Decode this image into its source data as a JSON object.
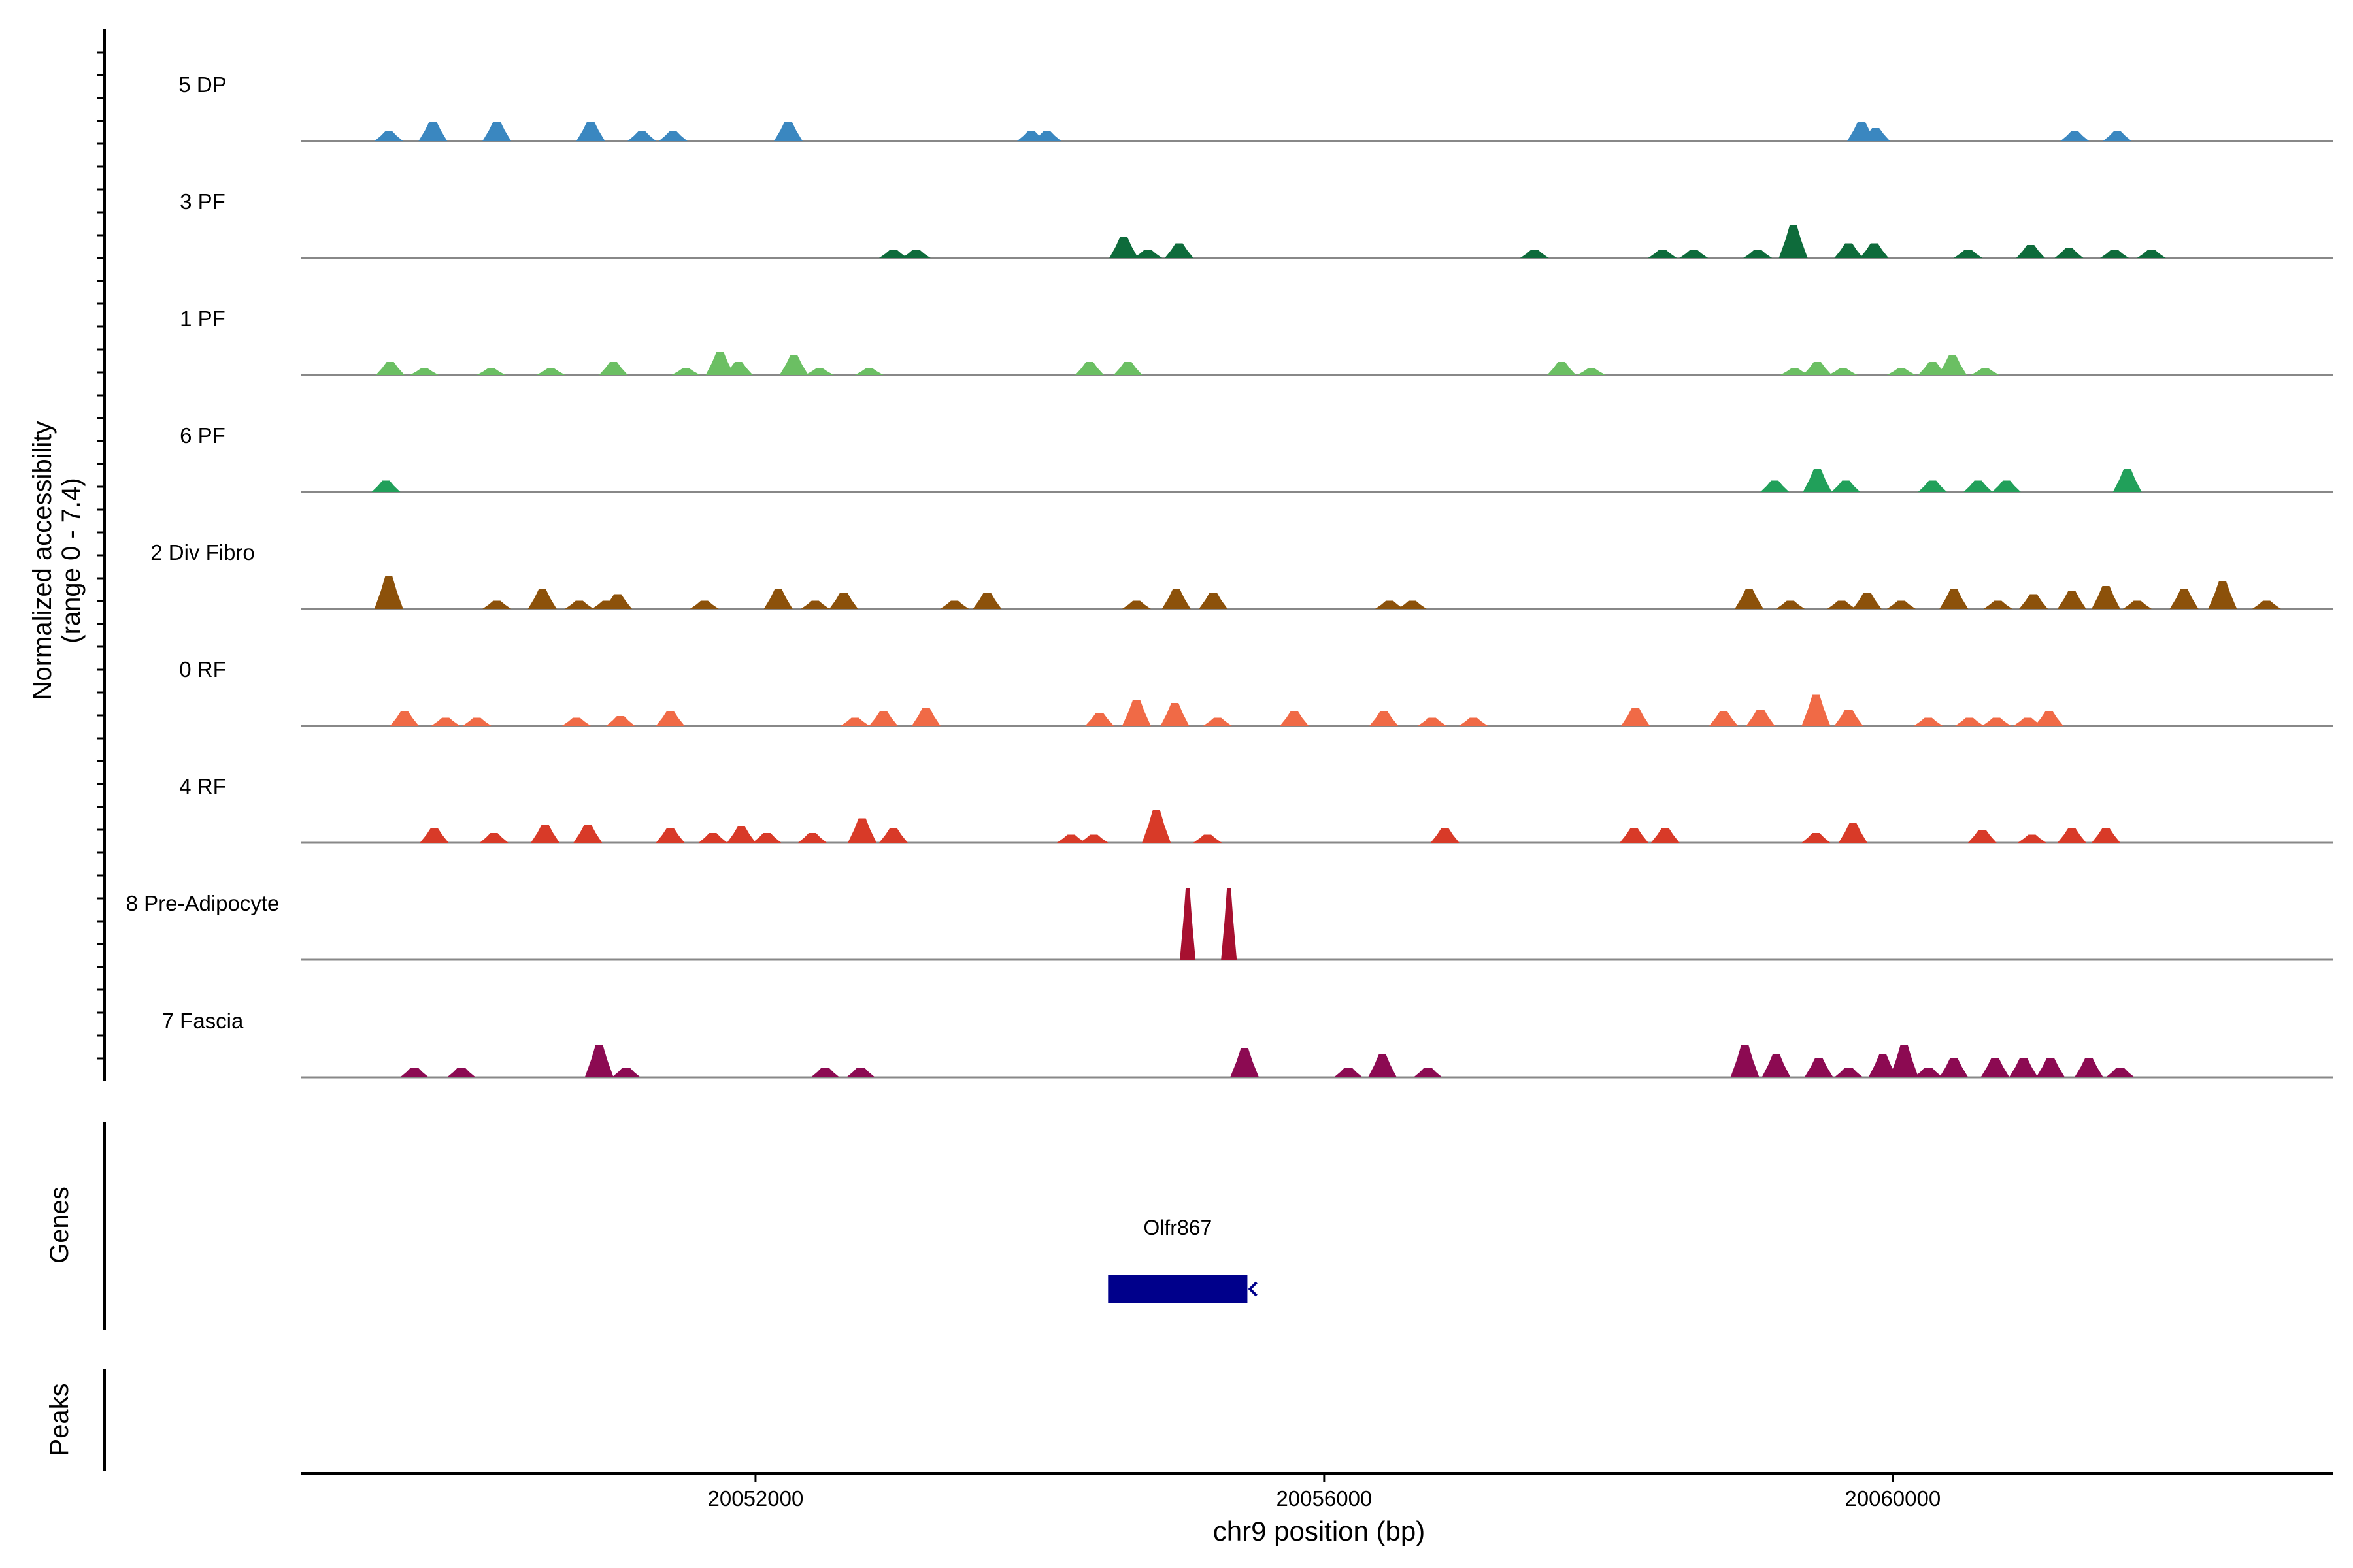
{
  "chart_data": {
    "type": "area",
    "title": "",
    "ylabel": "Normalized accessibility",
    "ylabel_range": "(range 0 - 7.4)",
    "xlabel": "chr9 position (bp)",
    "xlim": [
      20048800,
      20063100
    ],
    "x_ticks": [
      20052000,
      20056000,
      20060000
    ],
    "tracks_title_genes": "Genes",
    "tracks_title_peaks": "Peaks",
    "series": [
      {
        "name": "5 DP",
        "color": "#3a87c0",
        "peaks": [
          [
            20049420,
            0.3
          ],
          [
            20049730,
            0.6
          ],
          [
            20050180,
            0.6
          ],
          [
            20050840,
            0.6
          ],
          [
            20051200,
            0.3
          ],
          [
            20051420,
            0.3
          ],
          [
            20052230,
            0.6
          ],
          [
            20053940,
            0.3
          ],
          [
            20054050,
            0.3
          ],
          [
            20059780,
            0.6
          ],
          [
            20059880,
            0.4
          ],
          [
            20061280,
            0.3
          ],
          [
            20061580,
            0.3
          ]
        ]
      },
      {
        "name": "3 PF",
        "color": "#0e6b3b",
        "peaks": [
          [
            20052970,
            0.25
          ],
          [
            20053130,
            0.25
          ],
          [
            20054590,
            0.65
          ],
          [
            20054760,
            0.25
          ],
          [
            20054980,
            0.45
          ],
          [
            20057480,
            0.25
          ],
          [
            20058380,
            0.25
          ],
          [
            20058600,
            0.25
          ],
          [
            20059050,
            0.25
          ],
          [
            20059300,
            1.0
          ],
          [
            20059690,
            0.45
          ],
          [
            20059870,
            0.45
          ],
          [
            20060530,
            0.25
          ],
          [
            20060970,
            0.4
          ],
          [
            20061240,
            0.3
          ],
          [
            20061560,
            0.25
          ],
          [
            20061820,
            0.25
          ]
        ]
      },
      {
        "name": "1 PF",
        "color": "#6bbf63",
        "peaks": [
          [
            20049430,
            0.4
          ],
          [
            20049670,
            0.2
          ],
          [
            20050140,
            0.2
          ],
          [
            20050560,
            0.2
          ],
          [
            20051000,
            0.4
          ],
          [
            20051510,
            0.2
          ],
          [
            20051750,
            0.7
          ],
          [
            20051880,
            0.4
          ],
          [
            20052270,
            0.6
          ],
          [
            20052450,
            0.2
          ],
          [
            20052800,
            0.2
          ],
          [
            20054350,
            0.4
          ],
          [
            20054620,
            0.4
          ],
          [
            20057670,
            0.4
          ],
          [
            20057880,
            0.2
          ],
          [
            20059310,
            0.2
          ],
          [
            20059470,
            0.4
          ],
          [
            20059650,
            0.2
          ],
          [
            20060060,
            0.2
          ],
          [
            20060280,
            0.4
          ],
          [
            20060420,
            0.6
          ],
          [
            20060650,
            0.2
          ]
        ]
      },
      {
        "name": "6 PF",
        "color": "#21a05a",
        "peaks": [
          [
            20049400,
            0.35
          ],
          [
            20059170,
            0.35
          ],
          [
            20059470,
            0.7
          ],
          [
            20059670,
            0.35
          ],
          [
            20060280,
            0.35
          ],
          [
            20060600,
            0.35
          ],
          [
            20060800,
            0.35
          ],
          [
            20061650,
            0.7
          ]
        ]
      },
      {
        "name": "2 Div Fibro",
        "color": "#8c510a",
        "peaks": [
          [
            20049420,
            1.0
          ],
          [
            20050180,
            0.25
          ],
          [
            20050500,
            0.6
          ],
          [
            20050760,
            0.25
          ],
          [
            20050950,
            0.25
          ],
          [
            20051030,
            0.45
          ],
          [
            20051640,
            0.25
          ],
          [
            20052160,
            0.6
          ],
          [
            20052420,
            0.25
          ],
          [
            20052620,
            0.5
          ],
          [
            20053400,
            0.25
          ],
          [
            20053630,
            0.5
          ],
          [
            20054680,
            0.25
          ],
          [
            20054960,
            0.6
          ],
          [
            20055220,
            0.5
          ],
          [
            20056460,
            0.25
          ],
          [
            20056620,
            0.25
          ],
          [
            20058990,
            0.6
          ],
          [
            20059280,
            0.25
          ],
          [
            20059640,
            0.25
          ],
          [
            20059820,
            0.5
          ],
          [
            20060060,
            0.25
          ],
          [
            20060430,
            0.6
          ],
          [
            20060740,
            0.25
          ],
          [
            20060990,
            0.45
          ],
          [
            20061260,
            0.55
          ],
          [
            20061500,
            0.7
          ],
          [
            20061720,
            0.25
          ],
          [
            20062050,
            0.6
          ],
          [
            20062320,
            0.85
          ],
          [
            20062630,
            0.25
          ]
        ]
      },
      {
        "name": "0 RF",
        "color": "#f06a46",
        "peaks": [
          [
            20049530,
            0.45
          ],
          [
            20049820,
            0.25
          ],
          [
            20050040,
            0.25
          ],
          [
            20050740,
            0.25
          ],
          [
            20051050,
            0.3
          ],
          [
            20051400,
            0.45
          ],
          [
            20052700,
            0.25
          ],
          [
            20052900,
            0.45
          ],
          [
            20053200,
            0.55
          ],
          [
            20054420,
            0.4
          ],
          [
            20054680,
            0.8
          ],
          [
            20054950,
            0.7
          ],
          [
            20055250,
            0.25
          ],
          [
            20055790,
            0.45
          ],
          [
            20056420,
            0.45
          ],
          [
            20056760,
            0.25
          ],
          [
            20057050,
            0.25
          ],
          [
            20058190,
            0.55
          ],
          [
            20058810,
            0.45
          ],
          [
            20059070,
            0.5
          ],
          [
            20059460,
            0.95
          ],
          [
            20059690,
            0.5
          ],
          [
            20060250,
            0.25
          ],
          [
            20060540,
            0.25
          ],
          [
            20060730,
            0.25
          ],
          [
            20060950,
            0.25
          ],
          [
            20061100,
            0.45
          ]
        ]
      },
      {
        "name": "4 RF",
        "color": "#d83a28",
        "peaks": [
          [
            20049740,
            0.45
          ],
          [
            20050160,
            0.3
          ],
          [
            20050520,
            0.55
          ],
          [
            20050820,
            0.55
          ],
          [
            20051400,
            0.45
          ],
          [
            20051700,
            0.3
          ],
          [
            20051900,
            0.5
          ],
          [
            20052080,
            0.3
          ],
          [
            20052400,
            0.3
          ],
          [
            20052750,
            0.75
          ],
          [
            20052970,
            0.45
          ],
          [
            20054220,
            0.25
          ],
          [
            20054380,
            0.25
          ],
          [
            20054820,
            1.0
          ],
          [
            20055180,
            0.25
          ],
          [
            20056850,
            0.45
          ],
          [
            20058180,
            0.45
          ],
          [
            20058400,
            0.45
          ],
          [
            20059460,
            0.3
          ],
          [
            20059720,
            0.6
          ],
          [
            20060630,
            0.4
          ],
          [
            20060980,
            0.25
          ],
          [
            20061260,
            0.45
          ],
          [
            20061500,
            0.45
          ]
        ]
      },
      {
        "name": "8 Pre-Adipocyte",
        "color": "#a71030",
        "peaks": [
          [
            20055040,
            2.2
          ],
          [
            20055330,
            2.2
          ]
        ]
      },
      {
        "name": "7 Fascia",
        "color": "#8c0a52",
        "peaks": [
          [
            20049600,
            0.3
          ],
          [
            20049930,
            0.3
          ],
          [
            20050900,
            1.0
          ],
          [
            20051090,
            0.3
          ],
          [
            20052490,
            0.3
          ],
          [
            20052740,
            0.3
          ],
          [
            20055440,
            0.9
          ],
          [
            20056170,
            0.3
          ],
          [
            20056410,
            0.7
          ],
          [
            20056730,
            0.3
          ],
          [
            20058960,
            1.0
          ],
          [
            20059180,
            0.7
          ],
          [
            20059480,
            0.6
          ],
          [
            20059690,
            0.3
          ],
          [
            20059930,
            0.7
          ],
          [
            20060080,
            1.0
          ],
          [
            20060250,
            0.3
          ],
          [
            20060430,
            0.6
          ],
          [
            20060720,
            0.6
          ],
          [
            20060920,
            0.6
          ],
          [
            20061110,
            0.6
          ],
          [
            20061380,
            0.6
          ],
          [
            20061600,
            0.3
          ]
        ]
      }
    ],
    "genes": [
      {
        "name": "Olfr867",
        "start": 20054480,
        "end": 20055460,
        "strand": "-"
      }
    ],
    "peaks_track": []
  },
  "colors": {
    "gene": "#00008b",
    "baseline": "#888888"
  }
}
